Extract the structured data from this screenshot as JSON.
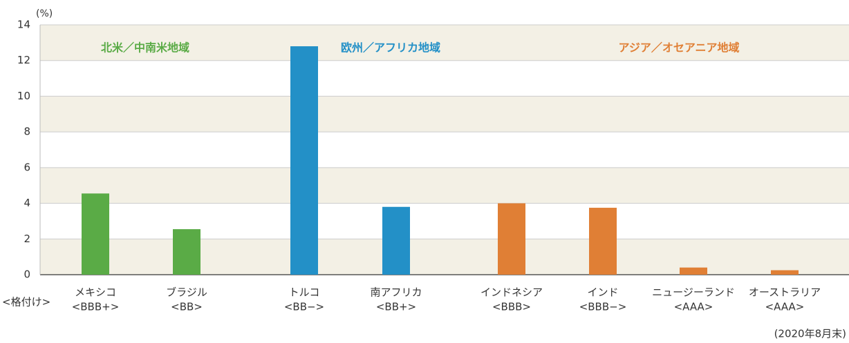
{
  "chart_data": {
    "type": "bar",
    "unit_label": "(%)",
    "categories": [
      "メキシコ",
      "ブラジル",
      "トルコ",
      "南アフリカ",
      "インドネシア",
      "インド",
      "ニュージーランド",
      "オーストラリア"
    ],
    "ratings_label": "<格付け>",
    "ratings": [
      "<BBB+>",
      "<BB>",
      "<BB−>",
      "<BB+>",
      "<BBB>",
      "<BBB−>",
      "<AAA>",
      "<AAA>"
    ],
    "series": [
      {
        "name": "北米／中南米地域",
        "color": "#5aab46",
        "values": [
          4.55,
          2.55,
          null,
          null,
          null,
          null,
          null,
          null
        ]
      },
      {
        "name": "欧州／アフリカ地域",
        "color": "#2390c7",
        "values": [
          null,
          null,
          12.8,
          3.8,
          null,
          null,
          null,
          null
        ]
      },
      {
        "name": "アジア／オセアニア地域",
        "color": "#e07f35",
        "values": [
          null,
          null,
          null,
          null,
          4.0,
          3.75,
          0.4,
          0.25
        ]
      }
    ],
    "ylim": [
      0,
      14
    ],
    "yticks": [
      0,
      2,
      4,
      6,
      8,
      10,
      12,
      14
    ],
    "banded_grid": true,
    "footnote": "(2020年8月末)"
  }
}
